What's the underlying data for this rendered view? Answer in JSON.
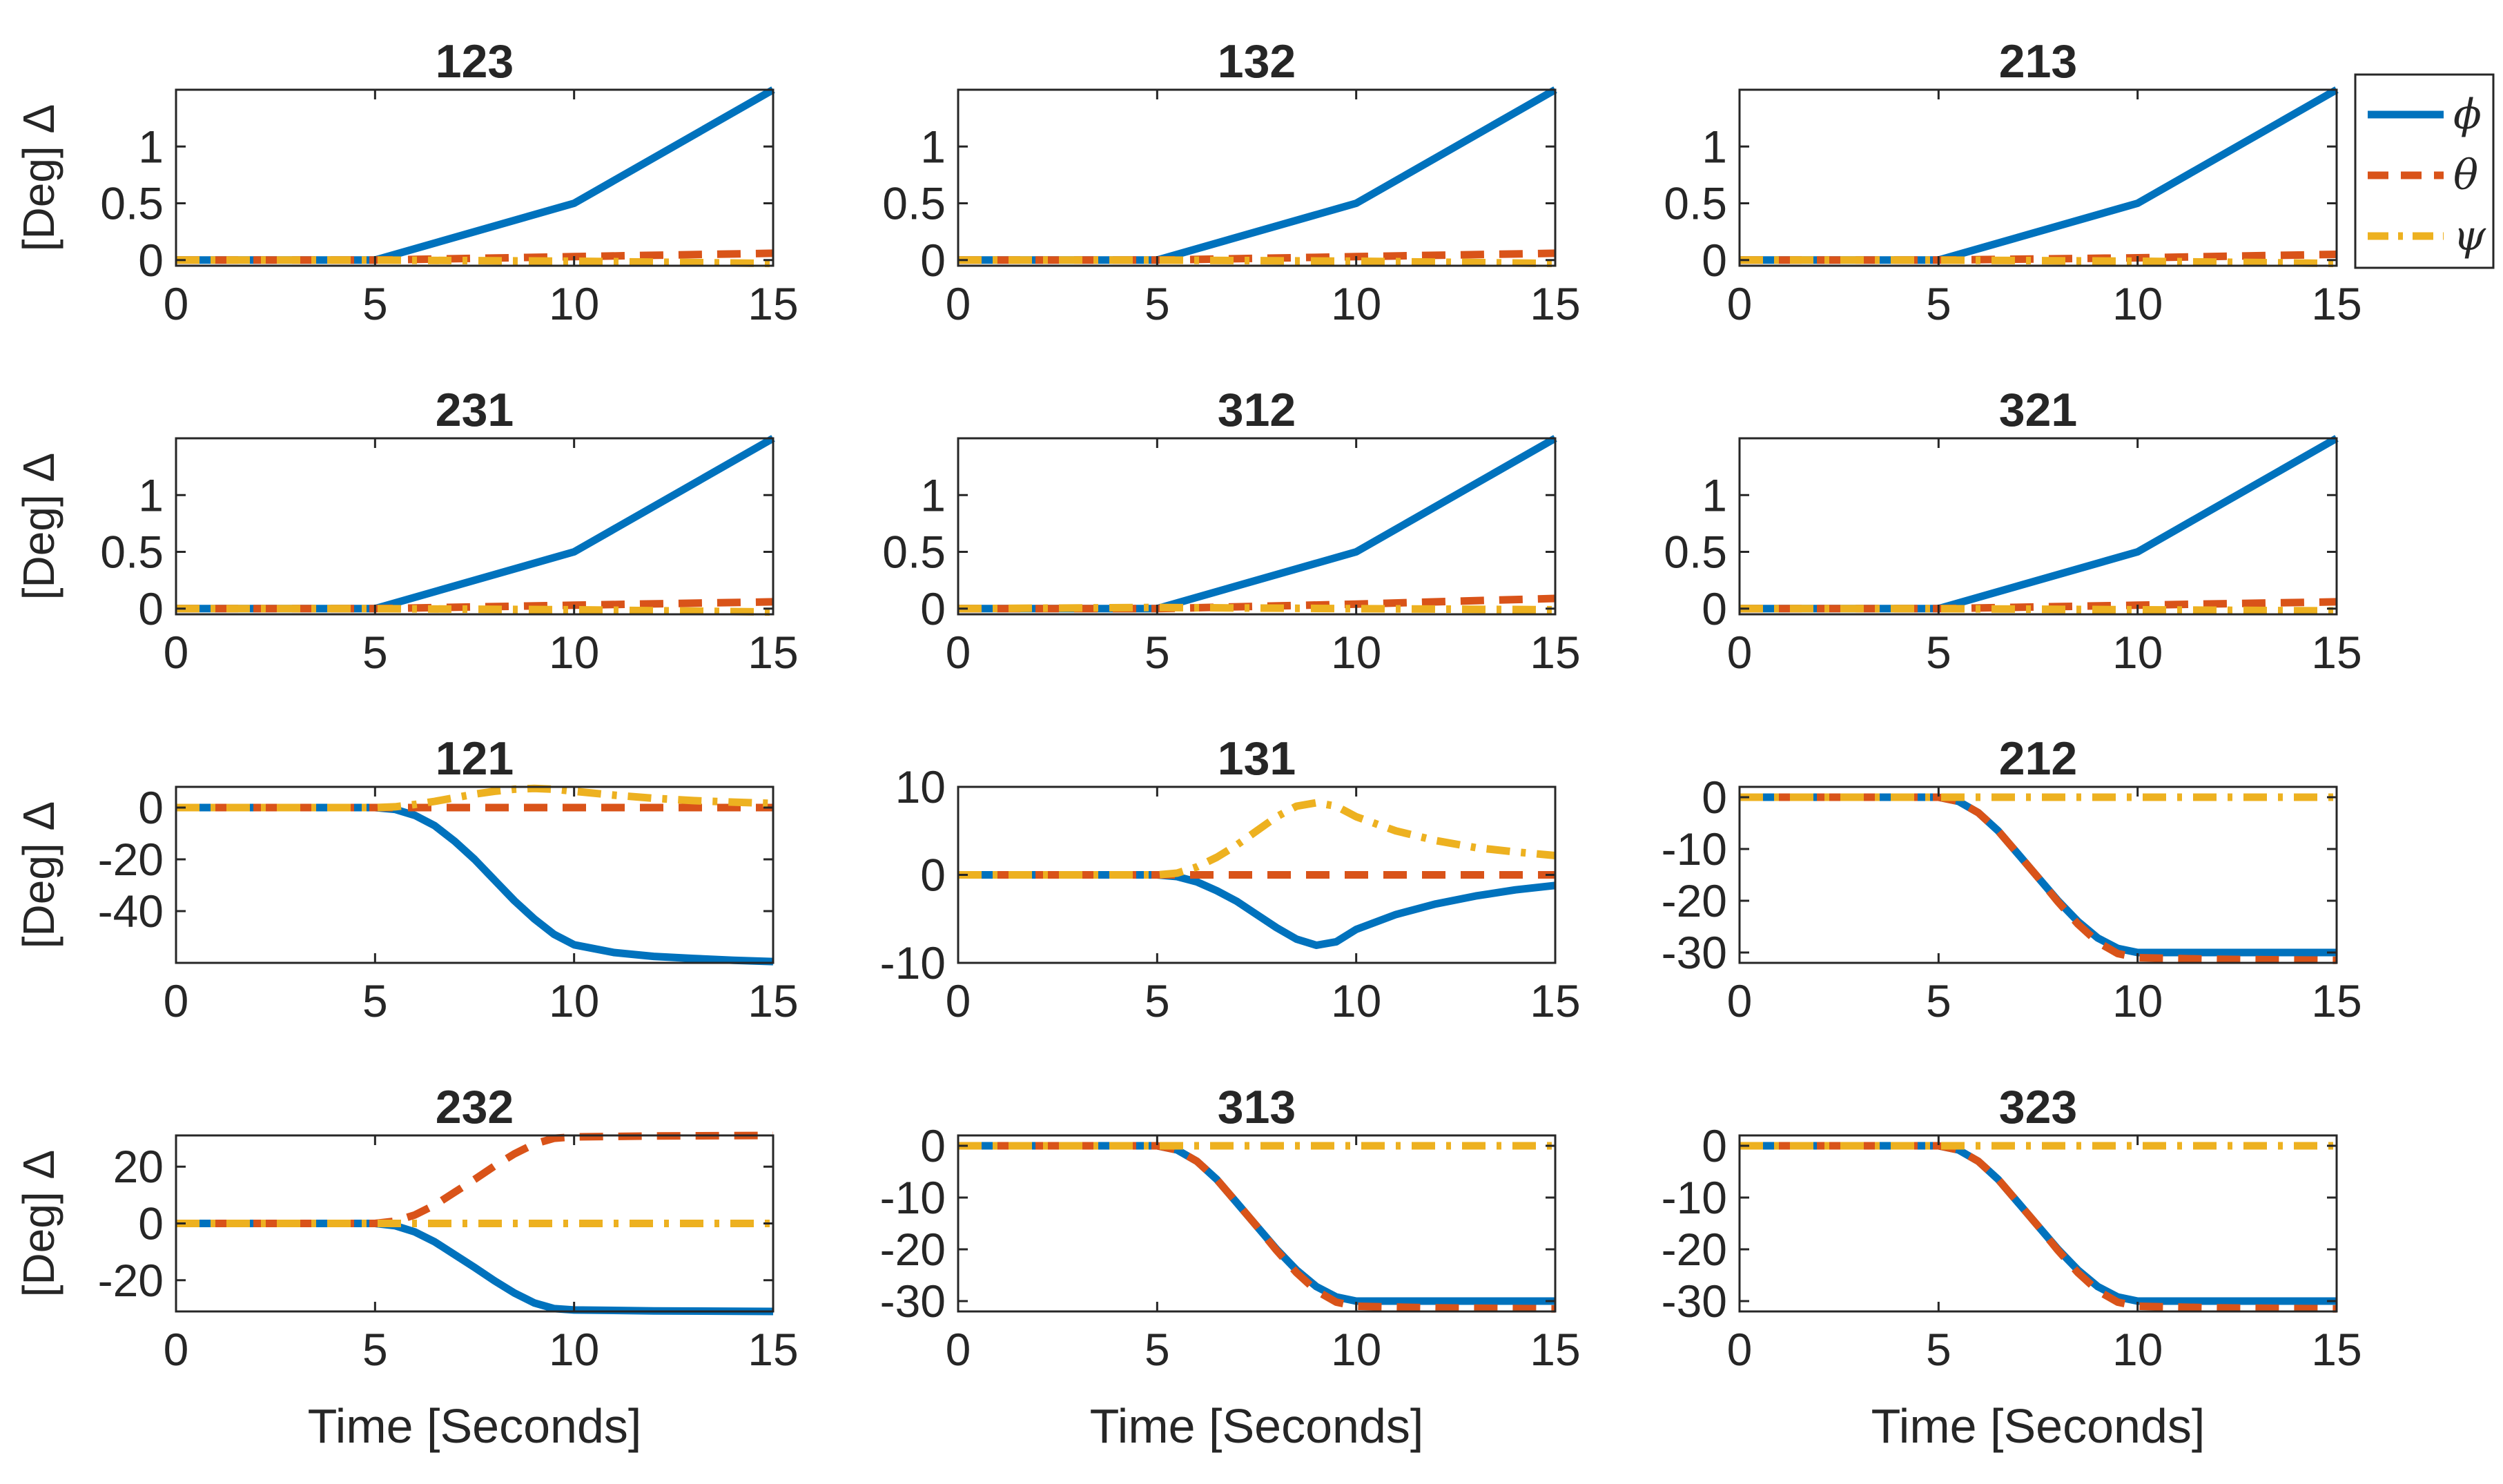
{
  "figure": {
    "xlabel": "Time [Seconds]",
    "ylabel": "[Deg] Δ",
    "legend": [
      {
        "label": "ϕ",
        "color": "#0072BD",
        "dash": "solid"
      },
      {
        "label": "θ",
        "color": "#D95319",
        "dash": "dashed"
      },
      {
        "label": "ψ",
        "color": "#EDB120",
        "dash": "dashdot"
      }
    ]
  },
  "chart_data": [
    {
      "type": "line",
      "title": "123",
      "xlabel": "",
      "ylabel": "[Deg] Δ",
      "xlim": [
        0,
        15
      ],
      "ylim": [
        -0.05,
        1.5
      ],
      "xticks": [
        0,
        5,
        10,
        15
      ],
      "yticks": [
        0,
        0.5,
        1
      ],
      "ytick_labels": [
        "0",
        "0.5",
        "1"
      ],
      "series": [
        {
          "name": "ϕ",
          "x": [
            0,
            5,
            10,
            15
          ],
          "y": [
            0,
            0,
            0.5,
            1.5
          ]
        },
        {
          "name": "θ",
          "x": [
            0,
            5,
            10,
            15
          ],
          "y": [
            0,
            0,
            0.03,
            0.06
          ]
        },
        {
          "name": "ψ",
          "x": [
            0,
            5,
            10,
            15
          ],
          "y": [
            0,
            0,
            -0.01,
            -0.03
          ]
        }
      ]
    },
    {
      "type": "line",
      "title": "132",
      "xlabel": "",
      "ylabel": "",
      "xlim": [
        0,
        15
      ],
      "ylim": [
        -0.05,
        1.5
      ],
      "xticks": [
        0,
        5,
        10,
        15
      ],
      "yticks": [
        0,
        0.5,
        1
      ],
      "ytick_labels": [
        "0",
        "0.5",
        "1"
      ],
      "series": [
        {
          "name": "ϕ",
          "x": [
            0,
            5,
            10,
            15
          ],
          "y": [
            0,
            0,
            0.5,
            1.5
          ]
        },
        {
          "name": "θ",
          "x": [
            0,
            5,
            10,
            15
          ],
          "y": [
            0,
            0,
            0.03,
            0.06
          ]
        },
        {
          "name": "ψ",
          "x": [
            0,
            5,
            10,
            15
          ],
          "y": [
            0,
            0,
            -0.01,
            -0.03
          ]
        }
      ]
    },
    {
      "type": "line",
      "title": "213",
      "xlabel": "",
      "ylabel": "",
      "xlim": [
        0,
        15
      ],
      "ylim": [
        -0.05,
        1.5
      ],
      "xticks": [
        0,
        5,
        10,
        15
      ],
      "yticks": [
        0,
        0.5,
        1
      ],
      "ytick_labels": [
        "0",
        "0.5",
        "1"
      ],
      "series": [
        {
          "name": "ϕ",
          "x": [
            0,
            5,
            10,
            15
          ],
          "y": [
            0,
            0,
            0.5,
            1.5
          ]
        },
        {
          "name": "θ",
          "x": [
            0,
            5,
            10,
            15
          ],
          "y": [
            0,
            0,
            0.02,
            0.05
          ]
        },
        {
          "name": "ψ",
          "x": [
            0,
            5,
            10,
            15
          ],
          "y": [
            0,
            0,
            -0.01,
            -0.03
          ]
        }
      ]
    },
    {
      "type": "line",
      "title": "231",
      "xlabel": "",
      "ylabel": "[Deg] Δ",
      "xlim": [
        0,
        15
      ],
      "ylim": [
        -0.05,
        1.5
      ],
      "xticks": [
        0,
        5,
        10,
        15
      ],
      "yticks": [
        0,
        0.5,
        1
      ],
      "ytick_labels": [
        "0",
        "0.5",
        "1"
      ],
      "series": [
        {
          "name": "ϕ",
          "x": [
            0,
            5,
            10,
            15
          ],
          "y": [
            0,
            0,
            0.5,
            1.5
          ]
        },
        {
          "name": "θ",
          "x": [
            0,
            5,
            10,
            15
          ],
          "y": [
            0,
            0,
            0.03,
            0.06
          ]
        },
        {
          "name": "ψ",
          "x": [
            0,
            5,
            10,
            15
          ],
          "y": [
            0,
            0,
            -0.01,
            -0.03
          ]
        }
      ]
    },
    {
      "type": "line",
      "title": "312",
      "xlabel": "",
      "ylabel": "",
      "xlim": [
        0,
        15
      ],
      "ylim": [
        -0.05,
        1.5
      ],
      "xticks": [
        0,
        5,
        10,
        15
      ],
      "yticks": [
        0,
        0.5,
        1
      ],
      "ytick_labels": [
        "0",
        "0.5",
        "1"
      ],
      "series": [
        {
          "name": "ϕ",
          "x": [
            0,
            5,
            10,
            15
          ],
          "y": [
            0,
            0,
            0.5,
            1.5
          ]
        },
        {
          "name": "θ",
          "x": [
            0,
            5,
            10,
            15
          ],
          "y": [
            0,
            0,
            0.04,
            0.09
          ]
        },
        {
          "name": "ψ",
          "x": [
            0,
            5,
            10,
            15
          ],
          "y": [
            0,
            0.01,
            0,
            -0.01
          ]
        }
      ]
    },
    {
      "type": "line",
      "title": "321",
      "xlabel": "",
      "ylabel": "",
      "xlim": [
        0,
        15
      ],
      "ylim": [
        -0.05,
        1.5
      ],
      "xticks": [
        0,
        5,
        10,
        15
      ],
      "yticks": [
        0,
        0.5,
        1
      ],
      "ytick_labels": [
        "0",
        "0.5",
        "1"
      ],
      "series": [
        {
          "name": "ϕ",
          "x": [
            0,
            5,
            10,
            15
          ],
          "y": [
            0,
            0,
            0.5,
            1.5
          ]
        },
        {
          "name": "θ",
          "x": [
            0,
            5,
            10,
            15
          ],
          "y": [
            0,
            0,
            0.03,
            0.06
          ]
        },
        {
          "name": "ψ",
          "x": [
            0,
            5,
            10,
            15
          ],
          "y": [
            0,
            0,
            -0.01,
            -0.02
          ]
        }
      ]
    },
    {
      "type": "line",
      "title": "121",
      "xlabel": "",
      "ylabel": "[Deg] Δ",
      "xlim": [
        0,
        15
      ],
      "ylim": [
        -60,
        8
      ],
      "xticks": [
        0,
        5,
        10,
        15
      ],
      "yticks": [
        -40,
        -20,
        0
      ],
      "ytick_labels": [
        "-40",
        "-20",
        "0"
      ],
      "series": [
        {
          "name": "ϕ",
          "x": [
            0,
            5,
            5.5,
            6,
            6.5,
            7,
            7.5,
            8,
            8.5,
            9,
            9.5,
            10,
            11,
            12,
            13,
            14,
            15
          ],
          "y": [
            0,
            0,
            -0.7,
            -3,
            -7,
            -13,
            -20,
            -28,
            -36,
            -43,
            -49,
            -53,
            -56,
            -57.5,
            -58.3,
            -59,
            -59.5
          ]
        },
        {
          "name": "θ",
          "x": [
            0,
            15
          ],
          "y": [
            0,
            0
          ]
        },
        {
          "name": "ψ",
          "x": [
            0,
            5,
            5.5,
            6,
            6.5,
            7,
            7.5,
            8,
            8.5,
            9,
            9.5,
            10,
            11,
            12,
            13,
            14,
            15
          ],
          "y": [
            0,
            0,
            0.3,
            1.2,
            2.4,
            3.8,
            5.2,
            6.3,
            7.1,
            7.4,
            7.1,
            6.3,
            4.8,
            3.6,
            2.7,
            2.1,
            1.6
          ]
        }
      ]
    },
    {
      "type": "line",
      "title": "131",
      "xlabel": "",
      "ylabel": "",
      "xlim": [
        0,
        15
      ],
      "ylim": [
        -10,
        10
      ],
      "xticks": [
        0,
        5,
        10,
        15
      ],
      "yticks": [
        -10,
        0,
        10
      ],
      "ytick_labels": [
        "-10",
        "0",
        "10"
      ],
      "series": [
        {
          "name": "ϕ",
          "x": [
            0,
            5,
            5.5,
            6,
            6.5,
            7,
            7.5,
            8,
            8.5,
            9,
            9.5,
            10,
            11,
            12,
            13,
            14,
            15
          ],
          "y": [
            0,
            0,
            -0.2,
            -0.8,
            -1.8,
            -3,
            -4.5,
            -6,
            -7.3,
            -8,
            -7.6,
            -6.2,
            -4.5,
            -3.3,
            -2.4,
            -1.7,
            -1.2
          ]
        },
        {
          "name": "θ",
          "x": [
            0,
            15
          ],
          "y": [
            0,
            0
          ]
        },
        {
          "name": "ψ",
          "x": [
            0,
            5,
            5.5,
            6,
            6.5,
            7,
            7.5,
            8,
            8.5,
            9,
            9.5,
            10,
            11,
            12,
            13,
            14,
            15
          ],
          "y": [
            0,
            0,
            0.2,
            0.9,
            2,
            3.4,
            5,
            6.6,
            7.8,
            8.2,
            7.8,
            6.6,
            5,
            3.9,
            3.1,
            2.6,
            2.2
          ]
        }
      ]
    },
    {
      "type": "line",
      "title": "212",
      "xlabel": "",
      "ylabel": "",
      "xlim": [
        0,
        15
      ],
      "ylim": [
        -32,
        2
      ],
      "xticks": [
        0,
        5,
        10,
        15
      ],
      "yticks": [
        -30,
        -20,
        -10,
        0
      ],
      "ytick_labels": [
        "-30",
        "-20",
        "-10",
        "0"
      ],
      "series": [
        {
          "name": "ϕ",
          "x": [
            0,
            5,
            5.5,
            6,
            6.5,
            7,
            7.5,
            8,
            8.5,
            9,
            9.5,
            10,
            15
          ],
          "y": [
            0,
            0,
            -0.8,
            -3,
            -6.5,
            -11,
            -15.5,
            -20,
            -24,
            -27.2,
            -29.2,
            -30,
            -30
          ]
        },
        {
          "name": "θ",
          "x": [
            0,
            5,
            5.5,
            6,
            6.5,
            7,
            7.5,
            8,
            8.5,
            9,
            9.5,
            10,
            12,
            15
          ],
          "y": [
            0,
            0,
            -0.8,
            -3,
            -6.5,
            -11,
            -15.5,
            -20.2,
            -24.5,
            -28,
            -30.2,
            -31,
            -31.3,
            -31.5
          ]
        },
        {
          "name": "ψ",
          "x": [
            0,
            15
          ],
          "y": [
            0,
            0
          ]
        }
      ]
    },
    {
      "type": "line",
      "title": "232",
      "xlabel": "Time [Seconds]",
      "ylabel": "[Deg] Δ",
      "xlim": [
        0,
        15
      ],
      "ylim": [
        -31,
        31
      ],
      "xticks": [
        0,
        5,
        10,
        15
      ],
      "yticks": [
        -20,
        0,
        20
      ],
      "ytick_labels": [
        "-20",
        "0",
        "20"
      ],
      "series": [
        {
          "name": "ϕ",
          "x": [
            0,
            5,
            5.5,
            6,
            6.5,
            7,
            7.5,
            8,
            8.5,
            9,
            9.5,
            10,
            12,
            15
          ],
          "y": [
            0,
            0,
            -0.8,
            -3,
            -6.5,
            -11,
            -15.5,
            -20.2,
            -24.5,
            -28,
            -30,
            -30.5,
            -30.8,
            -31
          ]
        },
        {
          "name": "θ",
          "x": [
            0,
            5,
            5.5,
            6,
            6.5,
            7,
            7.5,
            8,
            8.5,
            9,
            9.5,
            10,
            12,
            15
          ],
          "y": [
            0,
            0,
            0.8,
            3,
            6.5,
            11,
            15.5,
            20.2,
            24.5,
            28,
            30,
            30.5,
            30.8,
            31
          ]
        },
        {
          "name": "ψ",
          "x": [
            0,
            15
          ],
          "y": [
            0,
            0
          ]
        }
      ]
    },
    {
      "type": "line",
      "title": "313",
      "xlabel": "Time [Seconds]",
      "ylabel": "",
      "xlim": [
        0,
        15
      ],
      "ylim": [
        -32,
        2
      ],
      "xticks": [
        0,
        5,
        10,
        15
      ],
      "yticks": [
        -30,
        -20,
        -10,
        0
      ],
      "ytick_labels": [
        "-30",
        "-20",
        "-10",
        "0"
      ],
      "series": [
        {
          "name": "ϕ",
          "x": [
            0,
            5,
            5.5,
            6,
            6.5,
            7,
            7.5,
            8,
            8.5,
            9,
            9.5,
            10,
            15
          ],
          "y": [
            0,
            0,
            -0.8,
            -3,
            -6.5,
            -11,
            -15.5,
            -20,
            -24,
            -27.2,
            -29.2,
            -30,
            -30
          ]
        },
        {
          "name": "θ",
          "x": [
            0,
            5,
            5.5,
            6,
            6.5,
            7,
            7.5,
            8,
            8.5,
            9,
            9.5,
            10,
            12,
            15
          ],
          "y": [
            0,
            0,
            -0.8,
            -3,
            -6.5,
            -11,
            -15.5,
            -20.2,
            -24.5,
            -28,
            -30.2,
            -31,
            -31.3,
            -31.5
          ]
        },
        {
          "name": "ψ",
          "x": [
            0,
            15
          ],
          "y": [
            0,
            0
          ]
        }
      ]
    },
    {
      "type": "line",
      "title": "323",
      "xlabel": "Time [Seconds]",
      "ylabel": "",
      "xlim": [
        0,
        15
      ],
      "ylim": [
        -32,
        2
      ],
      "xticks": [
        0,
        5,
        10,
        15
      ],
      "yticks": [
        -30,
        -20,
        -10,
        0
      ],
      "ytick_labels": [
        "-30",
        "-20",
        "-10",
        "0"
      ],
      "series": [
        {
          "name": "ϕ",
          "x": [
            0,
            5,
            5.5,
            6,
            6.5,
            7,
            7.5,
            8,
            8.5,
            9,
            9.5,
            10,
            15
          ],
          "y": [
            0,
            0,
            -0.8,
            -3,
            -6.5,
            -11,
            -15.5,
            -20,
            -24,
            -27.2,
            -29.2,
            -30,
            -30
          ]
        },
        {
          "name": "θ",
          "x": [
            0,
            5,
            5.5,
            6,
            6.5,
            7,
            7.5,
            8,
            8.5,
            9,
            9.5,
            10,
            12,
            15
          ],
          "y": [
            0,
            0,
            -0.8,
            -3,
            -6.5,
            -11,
            -15.5,
            -20.2,
            -24.5,
            -28,
            -30.2,
            -31,
            -31.3,
            -31.5
          ]
        },
        {
          "name": "ψ",
          "x": [
            0,
            15
          ],
          "y": [
            0,
            0
          ]
        }
      ]
    }
  ]
}
